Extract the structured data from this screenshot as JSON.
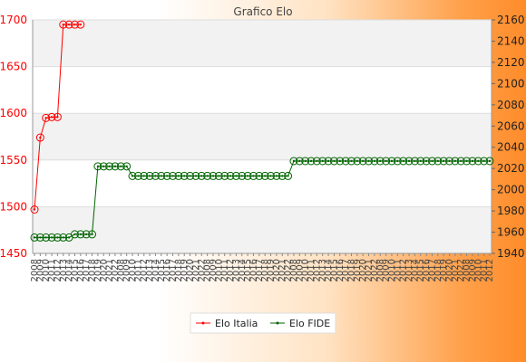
{
  "chart_data": {
    "type": "line",
    "title": "Grafico Elo",
    "colors": {
      "elo_italia": "#ff0000",
      "elo_fide": "#006400"
    },
    "y_left": {
      "range": [
        1450,
        1700
      ],
      "ticks": [
        1450,
        1500,
        1550,
        1600,
        1650,
        1700
      ]
    },
    "y_right": {
      "range": [
        1940,
        2160
      ],
      "ticks": [
        1940,
        1960,
        1980,
        2000,
        2020,
        2040,
        2060,
        2080,
        2100,
        2120,
        2140,
        2160
      ]
    },
    "x_count": 80,
    "x_tick_labels": [
      "2008",
      "2009",
      "2010",
      "2011",
      "2012",
      "2013",
      "2014",
      "2015",
      "2016",
      "2017",
      "2018",
      "2019",
      "2020",
      "2021",
      "2022"
    ],
    "series": [
      {
        "name": "Elo Italia",
        "axis": "left",
        "points": [
          [
            0,
            1497
          ],
          [
            1,
            1574
          ],
          [
            2,
            1595
          ],
          [
            3,
            1596
          ],
          [
            4,
            1596
          ],
          [
            5,
            1695
          ],
          [
            6,
            1695
          ],
          [
            7,
            1695
          ],
          [
            8,
            1695
          ]
        ]
      },
      {
        "name": "Elo FIDE",
        "axis": "right",
        "values": [
          1955,
          1955,
          1955,
          1955,
          1955,
          1955,
          1955,
          1958,
          1958,
          1958,
          1958,
          2022,
          2022,
          2022,
          2022,
          2022,
          2022,
          2013,
          2013,
          2013,
          2013,
          2013,
          2013,
          2013,
          2013,
          2013,
          2013,
          2013,
          2013,
          2013,
          2013,
          2013,
          2013,
          2013,
          2013,
          2013,
          2013,
          2013,
          2013,
          2013,
          2013,
          2013,
          2013,
          2013,
          2013,
          2027,
          2027,
          2027,
          2027,
          2027,
          2027,
          2027,
          2027,
          2027,
          2027,
          2027,
          2027,
          2027,
          2027,
          2027,
          2027,
          2027,
          2027,
          2027,
          2027,
          2027,
          2027,
          2027,
          2027,
          2027,
          2027,
          2027,
          2027,
          2027,
          2027,
          2027,
          2027,
          2027,
          2027,
          2027
        ]
      }
    ],
    "legend": {
      "position": "bottom",
      "entries": [
        "Elo Italia",
        "Elo FIDE"
      ]
    },
    "grid": true
  }
}
